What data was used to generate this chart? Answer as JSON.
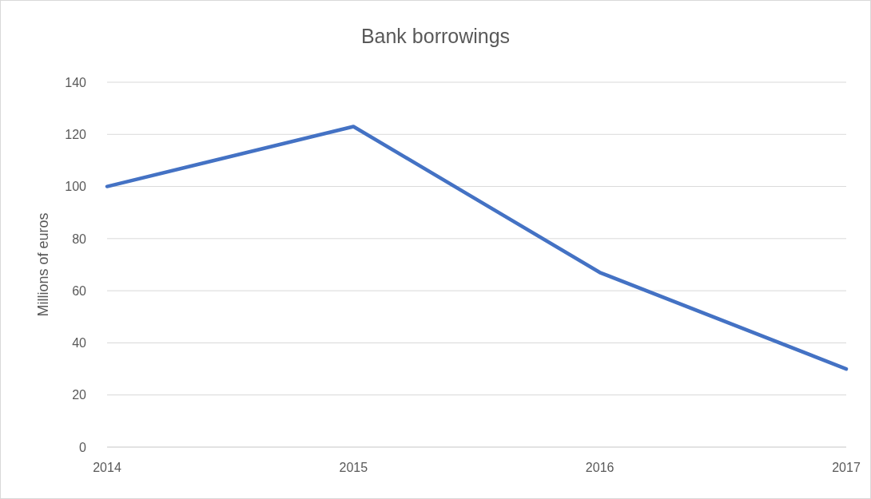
{
  "chart_data": {
    "type": "line",
    "title": "Bank borrowings",
    "ylabel": "Millions of euros",
    "categories": [
      "2014",
      "2015",
      "2016",
      "2017"
    ],
    "series": [
      {
        "color": "#4472c4",
        "values": [
          100,
          123,
          67,
          30
        ]
      }
    ],
    "ylim": [
      0,
      140
    ],
    "yticks": [
      0,
      20,
      40,
      60,
      80,
      100,
      120,
      140
    ],
    "grid": "y",
    "marker": "none",
    "line_style": "solid"
  }
}
